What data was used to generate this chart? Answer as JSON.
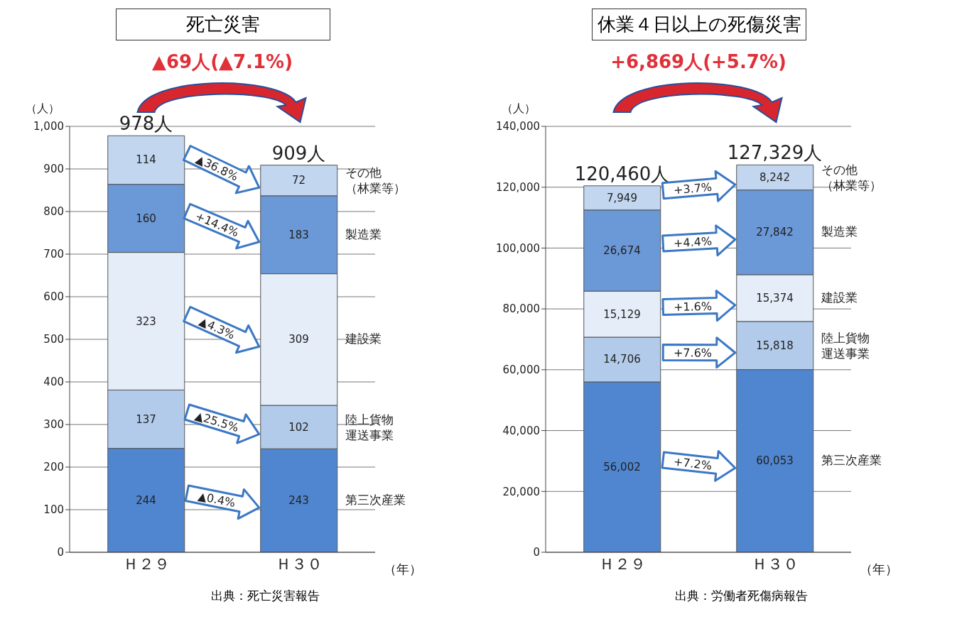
{
  "chart_data": [
    {
      "type": "bar",
      "stacked": true,
      "title": "死亡災害",
      "subtitle": "▲69人(▲7.1%)",
      "ylabel": "（人）",
      "xlabel": "（年）",
      "categories": [
        "Ｈ２９",
        "Ｈ３０"
      ],
      "ylim": [
        0,
        1000
      ],
      "yticks": [
        0,
        100,
        200,
        300,
        400,
        500,
        600,
        700,
        800,
        900,
        {
          "value": 1000,
          "label": "1,000"
        }
      ],
      "grid": "y",
      "legend": false,
      "series": [
        {
          "name": "第三次産業",
          "color": "#4f86cf",
          "values": [
            244,
            243
          ],
          "value_labels": [
            "244",
            "243"
          ]
        },
        {
          "name": "陸上貨物運送事業",
          "color": "#b3cbea",
          "values": [
            137,
            102
          ],
          "value_labels": [
            "137",
            "102"
          ]
        },
        {
          "name": "建設業",
          "color": "#e4edf8",
          "values": [
            323,
            309
          ],
          "value_labels": [
            "323",
            "309"
          ]
        },
        {
          "name": "製造業",
          "color": "#6b98d6",
          "values": [
            160,
            183
          ],
          "value_labels": [
            "160",
            "183"
          ]
        },
        {
          "name": "その他（林業等）",
          "color": "#c2d6f0",
          "values": [
            114,
            72
          ],
          "value_labels": [
            "114",
            "72"
          ]
        }
      ],
      "totals": [
        "978人",
        "909人"
      ],
      "annotations": [
        "▲0.4%",
        "▲25.5%",
        "▲4.3%",
        "+14.4%",
        "▲36.8%",
        "出典：死亡災害報告"
      ]
    },
    {
      "type": "bar",
      "stacked": true,
      "title": "休業４日以上の死傷災害",
      "subtitle": "+6,869人(+5.7%)",
      "ylabel": "（人）",
      "xlabel": "（年）",
      "categories": [
        "Ｈ２９",
        "Ｈ３０"
      ],
      "ylim": [
        0,
        140000
      ],
      "yticks": [
        0,
        {
          "value": 20000,
          "label": "20,000"
        },
        {
          "value": 40000,
          "label": "40,000"
        },
        {
          "value": 60000,
          "label": "60,000"
        },
        {
          "value": 80000,
          "label": "80,000"
        },
        {
          "value": 100000,
          "label": "100,000"
        },
        {
          "value": 120000,
          "label": "120,000"
        },
        {
          "value": 140000,
          "label": "140,000"
        }
      ],
      "grid": "y",
      "legend": false,
      "series": [
        {
          "name": "第三次産業",
          "color": "#4f86cf",
          "values": [
            56002,
            60053
          ],
          "value_labels": [
            "56,002",
            "60,053"
          ]
        },
        {
          "name": "陸上貨物運送事業",
          "color": "#b3cbea",
          "values": [
            14706,
            15818
          ],
          "value_labels": [
            "14,706",
            "15,818"
          ]
        },
        {
          "name": "建設業",
          "color": "#e4edf8",
          "values": [
            15129,
            15374
          ],
          "value_labels": [
            "15,129",
            "15,374"
          ]
        },
        {
          "name": "製造業",
          "color": "#6b98d6",
          "values": [
            26674,
            27842
          ],
          "value_labels": [
            "26,674",
            "27,842"
          ]
        },
        {
          "name": "その他（林業等）",
          "color": "#c2d6f0",
          "values": [
            7949,
            8242
          ],
          "value_labels": [
            "7,949",
            "8,242"
          ]
        }
      ],
      "totals": [
        "120,460人",
        "127,329人"
      ],
      "annotations": [
        "+7.2%",
        "+7.6%",
        "+1.6%",
        "+4.4%",
        "+3.7%",
        "出典：労働者死傷病報告"
      ]
    }
  ]
}
